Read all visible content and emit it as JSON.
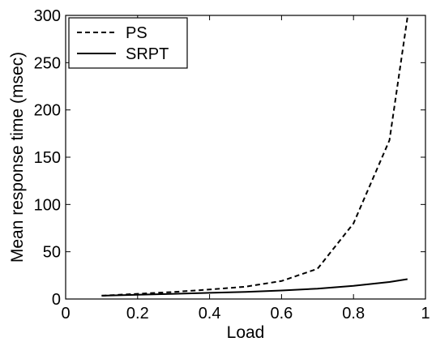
{
  "chart_data": {
    "type": "line",
    "title": "",
    "xlabel": "Load",
    "ylabel": "Mean response time (msec)",
    "xlim": [
      0,
      1
    ],
    "ylim": [
      0,
      300
    ],
    "xticks": [
      0,
      0.2,
      0.4,
      0.6,
      0.8,
      1
    ],
    "xtick_labels": [
      "0",
      "0.2",
      "0.4",
      "0.6",
      "0.8",
      "1"
    ],
    "yticks": [
      0,
      50,
      100,
      150,
      200,
      250,
      300
    ],
    "ytick_labels": [
      "0",
      "50",
      "100",
      "150",
      "200",
      "250",
      "300"
    ],
    "grid": false,
    "legend_position": "top-left",
    "series": [
      {
        "name": "PS",
        "style": "dashed",
        "color": "#000000",
        "x": [
          0.1,
          0.2,
          0.3,
          0.4,
          0.5,
          0.6,
          0.7,
          0.8,
          0.9,
          0.95
        ],
        "y": [
          3.5,
          5.5,
          7.5,
          10,
          13,
          19,
          32,
          80,
          168,
          298
        ]
      },
      {
        "name": "SRPT",
        "style": "solid",
        "color": "#000000",
        "x": [
          0.1,
          0.2,
          0.3,
          0.4,
          0.5,
          0.6,
          0.7,
          0.8,
          0.9,
          0.95
        ],
        "y": [
          3.5,
          4.5,
          5.5,
          6.5,
          7.5,
          9,
          11,
          14,
          18,
          21
        ]
      }
    ]
  }
}
